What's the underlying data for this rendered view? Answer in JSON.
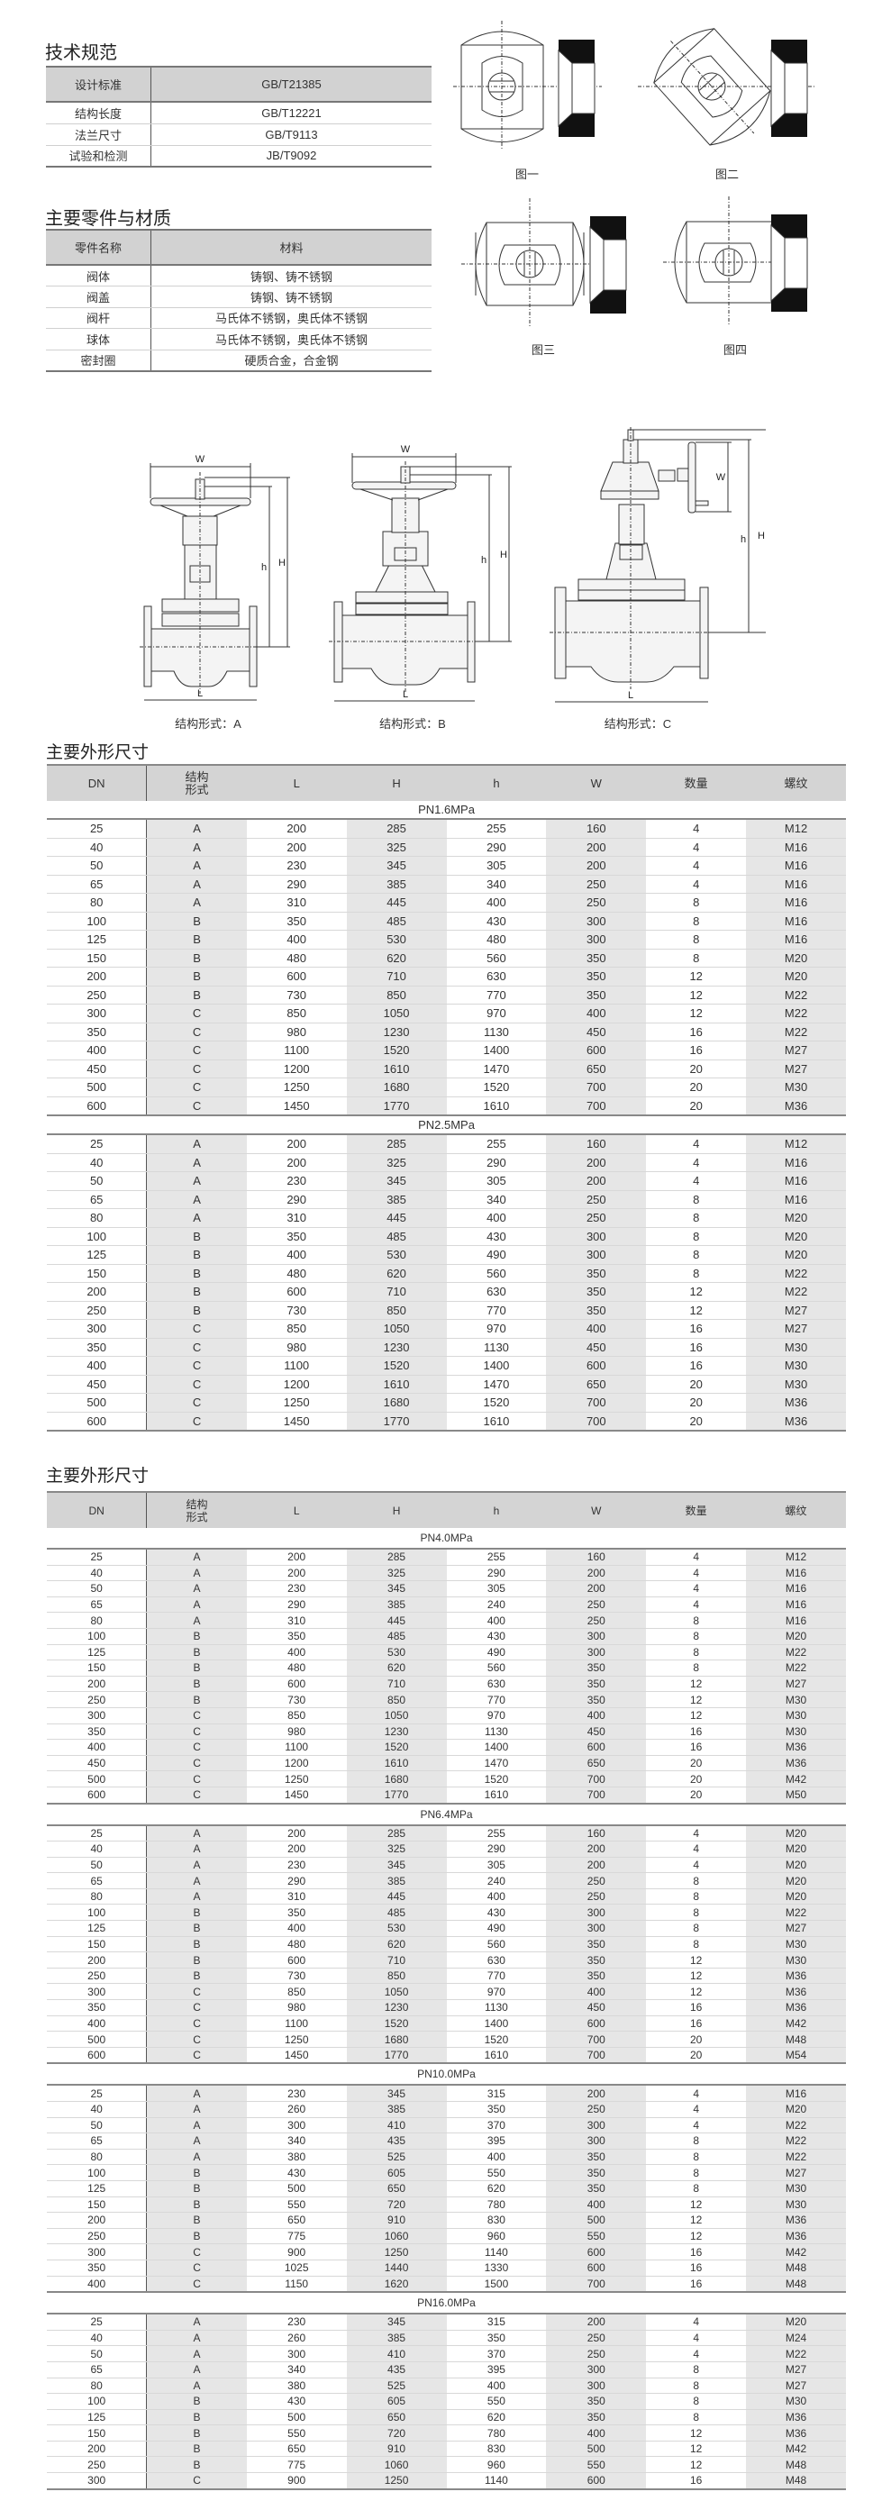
{
  "spec": {
    "title": "技术规范",
    "header": [
      "设计标准",
      "GB/T21385"
    ],
    "rows": [
      [
        "结构长度",
        "GB/T12221"
      ],
      [
        "法兰尺寸",
        "GB/T9113"
      ],
      [
        "试验和检测",
        "JB/T9092"
      ]
    ]
  },
  "materials": {
    "title": "主要零件与材质",
    "header": [
      "零件名称",
      "材料"
    ],
    "rows": [
      [
        "阀体",
        "铸钢、铸不锈钢"
      ],
      [
        "阀盖",
        "铸钢、铸不锈钢"
      ],
      [
        "阀杆",
        "马氏体不锈钢，奥氏体不锈钢"
      ],
      [
        "球体",
        "马氏体不锈钢，奥氏体不锈钢"
      ],
      [
        "密封圈",
        "硬质合金，合金钢"
      ]
    ]
  },
  "figures": {
    "fig1": "图一",
    "fig2": "图二",
    "fig3": "图三",
    "fig4": "图四"
  },
  "valves": {
    "caption_a": "结构形式：A",
    "caption_b": "结构形式：B",
    "caption_c": "结构形式：C",
    "dim_w": "W",
    "dim_h_small": "h",
    "dim_h_big": "H",
    "dim_l": "L"
  },
  "colors": {
    "header_bg": "#d4d4d4",
    "shade_col": "#e6e6e6",
    "seat_black": "#111111"
  },
  "tables": [
    {
      "title": "主要外形尺寸",
      "header": [
        "DN",
        "结构\n形式",
        "L",
        "H",
        "h",
        "W",
        "数量",
        "螺纹"
      ],
      "sections": [
        {
          "label": "PN1.6MPa",
          "rows": [
            [
              "25",
              "A",
              "200",
              "285",
              "255",
              "160",
              "4",
              "M12"
            ],
            [
              "40",
              "A",
              "200",
              "325",
              "290",
              "200",
              "4",
              "M16"
            ],
            [
              "50",
              "A",
              "230",
              "345",
              "305",
              "200",
              "4",
              "M16"
            ],
            [
              "65",
              "A",
              "290",
              "385",
              "340",
              "250",
              "4",
              "M16"
            ],
            [
              "80",
              "A",
              "310",
              "445",
              "400",
              "250",
              "8",
              "M16"
            ],
            [
              "100",
              "B",
              "350",
              "485",
              "430",
              "300",
              "8",
              "M16"
            ],
            [
              "125",
              "B",
              "400",
              "530",
              "480",
              "300",
              "8",
              "M16"
            ],
            [
              "150",
              "B",
              "480",
              "620",
              "560",
              "350",
              "8",
              "M20"
            ],
            [
              "200",
              "B",
              "600",
              "710",
              "630",
              "350",
              "12",
              "M20"
            ],
            [
              "250",
              "B",
              "730",
              "850",
              "770",
              "350",
              "12",
              "M22"
            ],
            [
              "300",
              "C",
              "850",
              "1050",
              "970",
              "400",
              "12",
              "M22"
            ],
            [
              "350",
              "C",
              "980",
              "1230",
              "1130",
              "450",
              "16",
              "M22"
            ],
            [
              "400",
              "C",
              "1100",
              "1520",
              "1400",
              "600",
              "16",
              "M27"
            ],
            [
              "450",
              "C",
              "1200",
              "1610",
              "1470",
              "650",
              "20",
              "M27"
            ],
            [
              "500",
              "C",
              "1250",
              "1680",
              "1520",
              "700",
              "20",
              "M30"
            ],
            [
              "600",
              "C",
              "1450",
              "1770",
              "1610",
              "700",
              "20",
              "M36"
            ]
          ]
        },
        {
          "label": "PN2.5MPa",
          "rows": [
            [
              "25",
              "A",
              "200",
              "285",
              "255",
              "160",
              "4",
              "M12"
            ],
            [
              "40",
              "A",
              "200",
              "325",
              "290",
              "200",
              "4",
              "M16"
            ],
            [
              "50",
              "A",
              "230",
              "345",
              "305",
              "200",
              "4",
              "M16"
            ],
            [
              "65",
              "A",
              "290",
              "385",
              "340",
              "250",
              "8",
              "M16"
            ],
            [
              "80",
              "A",
              "310",
              "445",
              "400",
              "250",
              "8",
              "M20"
            ],
            [
              "100",
              "B",
              "350",
              "485",
              "430",
              "300",
              "8",
              "M20"
            ],
            [
              "125",
              "B",
              "400",
              "530",
              "490",
              "300",
              "8",
              "M20"
            ],
            [
              "150",
              "B",
              "480",
              "620",
              "560",
              "350",
              "8",
              "M22"
            ],
            [
              "200",
              "B",
              "600",
              "710",
              "630",
              "350",
              "12",
              "M22"
            ],
            [
              "250",
              "B",
              "730",
              "850",
              "770",
              "350",
              "12",
              "M27"
            ],
            [
              "300",
              "C",
              "850",
              "1050",
              "970",
              "400",
              "16",
              "M27"
            ],
            [
              "350",
              "C",
              "980",
              "1230",
              "1130",
              "450",
              "16",
              "M30"
            ],
            [
              "400",
              "C",
              "1100",
              "1520",
              "1400",
              "600",
              "16",
              "M30"
            ],
            [
              "450",
              "C",
              "1200",
              "1610",
              "1470",
              "650",
              "20",
              "M30"
            ],
            [
              "500",
              "C",
              "1250",
              "1680",
              "1520",
              "700",
              "20",
              "M36"
            ],
            [
              "600",
              "C",
              "1450",
              "1770",
              "1610",
              "700",
              "20",
              "M36"
            ]
          ]
        }
      ]
    },
    {
      "title": "主要外形尺寸",
      "header": [
        "DN",
        "结构\n形式",
        "L",
        "H",
        "h",
        "W",
        "数量",
        "螺纹"
      ],
      "sections": [
        {
          "label": "PN4.0MPa",
          "rows": [
            [
              "25",
              "A",
              "200",
              "285",
              "255",
              "160",
              "4",
              "M12"
            ],
            [
              "40",
              "A",
              "200",
              "325",
              "290",
              "200",
              "4",
              "M16"
            ],
            [
              "50",
              "A",
              "230",
              "345",
              "305",
              "200",
              "4",
              "M16"
            ],
            [
              "65",
              "A",
              "290",
              "385",
              "240",
              "250",
              "4",
              "M16"
            ],
            [
              "80",
              "A",
              "310",
              "445",
              "400",
              "250",
              "8",
              "M16"
            ],
            [
              "100",
              "B",
              "350",
              "485",
              "430",
              "300",
              "8",
              "M20"
            ],
            [
              "125",
              "B",
              "400",
              "530",
              "490",
              "300",
              "8",
              "M22"
            ],
            [
              "150",
              "B",
              "480",
              "620",
              "560",
              "350",
              "8",
              "M22"
            ],
            [
              "200",
              "B",
              "600",
              "710",
              "630",
              "350",
              "12",
              "M27"
            ],
            [
              "250",
              "B",
              "730",
              "850",
              "770",
              "350",
              "12",
              "M30"
            ],
            [
              "300",
              "C",
              "850",
              "1050",
              "970",
              "400",
              "12",
              "M30"
            ],
            [
              "350",
              "C",
              "980",
              "1230",
              "1130",
              "450",
              "16",
              "M30"
            ],
            [
              "400",
              "C",
              "1100",
              "1520",
              "1400",
              "600",
              "16",
              "M36"
            ],
            [
              "450",
              "C",
              "1200",
              "1610",
              "1470",
              "650",
              "20",
              "M36"
            ],
            [
              "500",
              "C",
              "1250",
              "1680",
              "1520",
              "700",
              "20",
              "M42"
            ],
            [
              "600",
              "C",
              "1450",
              "1770",
              "1610",
              "700",
              "20",
              "M50"
            ]
          ]
        },
        {
          "label": "PN6.4MPa",
          "rows": [
            [
              "25",
              "A",
              "200",
              "285",
              "255",
              "160",
              "4",
              "M20"
            ],
            [
              "40",
              "A",
              "200",
              "325",
              "290",
              "200",
              "4",
              "M20"
            ],
            [
              "50",
              "A",
              "230",
              "345",
              "305",
              "200",
              "4",
              "M20"
            ],
            [
              "65",
              "A",
              "290",
              "385",
              "240",
              "250",
              "8",
              "M20"
            ],
            [
              "80",
              "A",
              "310",
              "445",
              "400",
              "250",
              "8",
              "M20"
            ],
            [
              "100",
              "B",
              "350",
              "485",
              "430",
              "300",
              "8",
              "M22"
            ],
            [
              "125",
              "B",
              "400",
              "530",
              "490",
              "300",
              "8",
              "M27"
            ],
            [
              "150",
              "B",
              "480",
              "620",
              "560",
              "350",
              "8",
              "M30"
            ],
            [
              "200",
              "B",
              "600",
              "710",
              "630",
              "350",
              "12",
              "M30"
            ],
            [
              "250",
              "B",
              "730",
              "850",
              "770",
              "350",
              "12",
              "M36"
            ],
            [
              "300",
              "C",
              "850",
              "1050",
              "970",
              "400",
              "12",
              "M36"
            ],
            [
              "350",
              "C",
              "980",
              "1230",
              "1130",
              "450",
              "16",
              "M36"
            ],
            [
              "400",
              "C",
              "1100",
              "1520",
              "1400",
              "600",
              "16",
              "M42"
            ],
            [
              "500",
              "C",
              "1250",
              "1680",
              "1520",
              "700",
              "20",
              "M48"
            ],
            [
              "600",
              "C",
              "1450",
              "1770",
              "1610",
              "700",
              "20",
              "M54"
            ]
          ]
        },
        {
          "label": "PN10.0MPa",
          "rows": [
            [
              "25",
              "A",
              "230",
              "345",
              "315",
              "200",
              "4",
              "M16"
            ],
            [
              "40",
              "A",
              "260",
              "385",
              "350",
              "250",
              "4",
              "M20"
            ],
            [
              "50",
              "A",
              "300",
              "410",
              "370",
              "300",
              "4",
              "M22"
            ],
            [
              "65",
              "A",
              "340",
              "435",
              "395",
              "300",
              "8",
              "M22"
            ],
            [
              "80",
              "A",
              "380",
              "525",
              "400",
              "350",
              "8",
              "M22"
            ],
            [
              "100",
              "B",
              "430",
              "605",
              "550",
              "350",
              "8",
              "M27"
            ],
            [
              "125",
              "B",
              "500",
              "650",
              "620",
              "350",
              "8",
              "M30"
            ],
            [
              "150",
              "B",
              "550",
              "720",
              "780",
              "400",
              "12",
              "M30"
            ],
            [
              "200",
              "B",
              "650",
              "910",
              "830",
              "500",
              "12",
              "M36"
            ],
            [
              "250",
              "B",
              "775",
              "1060",
              "960",
              "550",
              "12",
              "M36"
            ],
            [
              "300",
              "C",
              "900",
              "1250",
              "1140",
              "600",
              "16",
              "M42"
            ],
            [
              "350",
              "C",
              "1025",
              "1440",
              "1330",
              "600",
              "16",
              "M48"
            ],
            [
              "400",
              "C",
              "1150",
              "1620",
              "1500",
              "700",
              "16",
              "M48"
            ]
          ]
        },
        {
          "label": "PN16.0MPa",
          "rows": [
            [
              "25",
              "A",
              "230",
              "345",
              "315",
              "200",
              "4",
              "M20"
            ],
            [
              "40",
              "A",
              "260",
              "385",
              "350",
              "250",
              "4",
              "M24"
            ],
            [
              "50",
              "A",
              "300",
              "410",
              "370",
              "250",
              "4",
              "M22"
            ],
            [
              "65",
              "A",
              "340",
              "435",
              "395",
              "300",
              "8",
              "M27"
            ],
            [
              "80",
              "A",
              "380",
              "525",
              "400",
              "300",
              "8",
              "M27"
            ],
            [
              "100",
              "B",
              "430",
              "605",
              "550",
              "350",
              "8",
              "M30"
            ],
            [
              "125",
              "B",
              "500",
              "650",
              "620",
              "350",
              "8",
              "M36"
            ],
            [
              "150",
              "B",
              "550",
              "720",
              "780",
              "400",
              "12",
              "M36"
            ],
            [
              "200",
              "B",
              "650",
              "910",
              "830",
              "500",
              "12",
              "M42"
            ],
            [
              "250",
              "B",
              "775",
              "1060",
              "960",
              "550",
              "12",
              "M48"
            ],
            [
              "300",
              "C",
              "900",
              "1250",
              "1140",
              "600",
              "16",
              "M48"
            ]
          ]
        }
      ]
    }
  ]
}
